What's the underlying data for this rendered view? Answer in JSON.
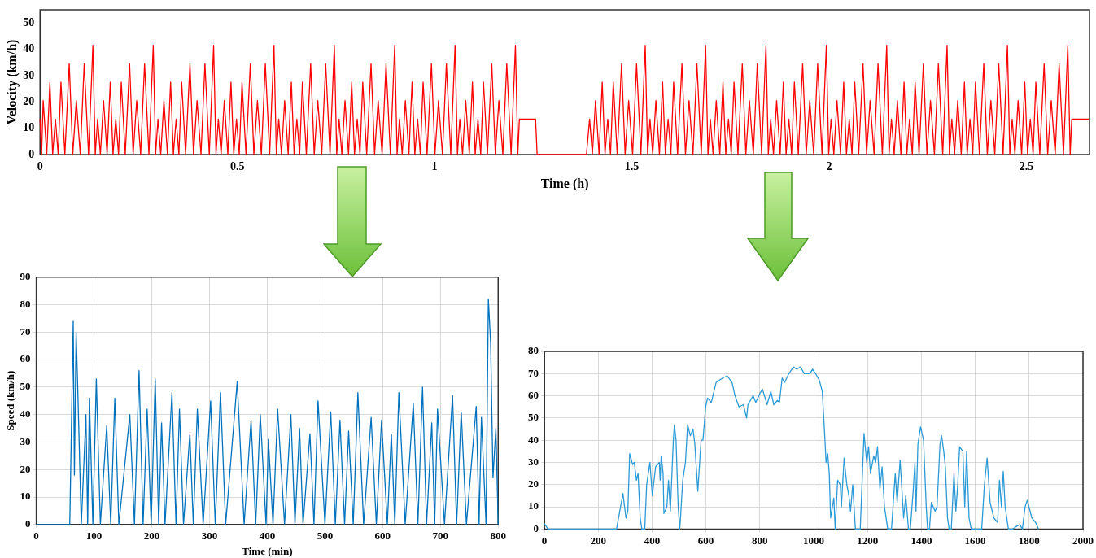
{
  "chart_data": [
    {
      "type": "line",
      "xlabel": "Time (h)",
      "ylabel": "Velocity (km/h)",
      "color": "#ff0000",
      "xlim": [
        0,
        2.66
      ],
      "ylim": [
        0,
        55
      ],
      "xticks": [
        0,
        0.5,
        1,
        1.5,
        2,
        2.5
      ],
      "yticks": [
        0,
        10,
        20,
        30,
        40,
        50
      ],
      "x": [
        0,
        0.004,
        0.008,
        0.017,
        0.025,
        0.032,
        0.039,
        0.046,
        0.053,
        0.063,
        0.074,
        0.083,
        0.092,
        0.102,
        0.112,
        0.123,
        0.134,
        0.14,
        0.146,
        0.153,
        0.161,
        0.17,
        0.178,
        0.185,
        0.192,
        0.199,
        0.206,
        0.216,
        0.227,
        0.236,
        0.245,
        0.255,
        0.265,
        0.276,
        0.287,
        0.293,
        0.299,
        0.306,
        0.314,
        0.323,
        0.331,
        0.338,
        0.345,
        0.352,
        0.359,
        0.369,
        0.38,
        0.389,
        0.398,
        0.408,
        0.418,
        0.429,
        0.44,
        0.446,
        0.452,
        0.459,
        0.467,
        0.476,
        0.484,
        0.491,
        0.498,
        0.505,
        0.512,
        0.522,
        0.533,
        0.542,
        0.551,
        0.561,
        0.571,
        0.582,
        0.593,
        0.599,
        0.605,
        0.612,
        0.62,
        0.629,
        0.637,
        0.644,
        0.651,
        0.658,
        0.665,
        0.675,
        0.686,
        0.695,
        0.704,
        0.714,
        0.724,
        0.735,
        0.746,
        0.752,
        0.758,
        0.765,
        0.773,
        0.782,
        0.79,
        0.797,
        0.804,
        0.811,
        0.818,
        0.828,
        0.839,
        0.848,
        0.857,
        0.867,
        0.877,
        0.888,
        0.899,
        0.905,
        0.911,
        0.918,
        0.926,
        0.935,
        0.943,
        0.95,
        0.957,
        0.964,
        0.971,
        0.981,
        0.992,
        1.001,
        1.01,
        1.02,
        1.03,
        1.041,
        1.052,
        1.058,
        1.064,
        1.071,
        1.079,
        1.088,
        1.096,
        1.103,
        1.11,
        1.117,
        1.124,
        1.134,
        1.145,
        1.154,
        1.163,
        1.173,
        1.183,
        1.194,
        1.205,
        1.211,
        1.215,
        1.256,
        1.26,
        1.385,
        1.393,
        1.4,
        1.408,
        1.417,
        1.425,
        1.432,
        1.439,
        1.446,
        1.453,
        1.463,
        1.474,
        1.483,
        1.492,
        1.502,
        1.512,
        1.523,
        1.534,
        1.54,
        1.546,
        1.553,
        1.561,
        1.57,
        1.578,
        1.585,
        1.592,
        1.599,
        1.606,
        1.616,
        1.627,
        1.636,
        1.645,
        1.655,
        1.665,
        1.676,
        1.687,
        1.693,
        1.699,
        1.706,
        1.714,
        1.723,
        1.731,
        1.738,
        1.745,
        1.752,
        1.759,
        1.769,
        1.78,
        1.789,
        1.798,
        1.808,
        1.818,
        1.829,
        1.84,
        1.846,
        1.852,
        1.859,
        1.867,
        1.876,
        1.884,
        1.891,
        1.898,
        1.905,
        1.912,
        1.922,
        1.933,
        1.942,
        1.951,
        1.961,
        1.971,
        1.982,
        1.993,
        1.999,
        2.005,
        2.012,
        2.02,
        2.029,
        2.037,
        2.044,
        2.051,
        2.058,
        2.065,
        2.075,
        2.086,
        2.095,
        2.104,
        2.114,
        2.124,
        2.135,
        2.146,
        2.152,
        2.158,
        2.165,
        2.173,
        2.182,
        2.19,
        2.197,
        2.204,
        2.211,
        2.218,
        2.228,
        2.239,
        2.248,
        2.257,
        2.267,
        2.277,
        2.288,
        2.299,
        2.305,
        2.311,
        2.318,
        2.326,
        2.335,
        2.343,
        2.35,
        2.357,
        2.364,
        2.371,
        2.381,
        2.392,
        2.401,
        2.41,
        2.42,
        2.43,
        2.441,
        2.452,
        2.458,
        2.464,
        2.471,
        2.479,
        2.488,
        2.496,
        2.503,
        2.51,
        2.517,
        2.524,
        2.534,
        2.545,
        2.554,
        2.563,
        2.573,
        2.583,
        2.594,
        2.605,
        2.611,
        2.615,
        2.66
      ],
      "values": [
        13.5,
        0,
        20.5,
        0,
        27.5,
        0,
        13.5,
        0,
        27.5,
        0,
        34.5,
        0,
        20.5,
        0,
        34.5,
        0,
        41.5,
        0,
        13.5,
        0,
        20.5,
        0,
        27.5,
        0,
        13.5,
        0,
        27.5,
        0,
        34.5,
        0,
        20.5,
        0,
        34.5,
        0,
        41.5,
        0,
        13.5,
        0,
        20.5,
        0,
        27.5,
        0,
        13.5,
        0,
        27.5,
        0,
        34.5,
        0,
        20.5,
        0,
        34.5,
        0,
        41.5,
        0,
        13.5,
        0,
        20.5,
        0,
        27.5,
        0,
        13.5,
        0,
        27.5,
        0,
        34.5,
        0,
        20.5,
        0,
        34.5,
        0,
        41.5,
        0,
        13.5,
        0,
        20.5,
        0,
        27.5,
        0,
        13.5,
        0,
        27.5,
        0,
        34.5,
        0,
        20.5,
        0,
        34.5,
        0,
        41.5,
        0,
        13.5,
        0,
        20.5,
        0,
        27.5,
        0,
        13.5,
        0,
        27.5,
        0,
        34.5,
        0,
        20.5,
        0,
        34.5,
        0,
        41.5,
        0,
        13.5,
        0,
        20.5,
        0,
        27.5,
        0,
        13.5,
        0,
        27.5,
        0,
        34.5,
        0,
        20.5,
        0,
        34.5,
        0,
        41.5,
        0,
        13.5,
        0,
        20.5,
        0,
        27.5,
        0,
        13.5,
        0,
        27.5,
        0,
        34.5,
        0,
        20.5,
        0,
        34.5,
        0,
        41.5,
        0,
        13.5,
        13.5,
        0,
        0,
        13.5,
        0,
        20.5,
        0,
        27.5,
        0,
        13.5,
        0,
        27.5,
        0,
        34.5,
        0,
        20.5,
        0,
        34.5,
        0,
        41.5,
        0,
        13.5,
        0,
        20.5,
        0,
        27.5,
        0,
        13.5,
        0,
        27.5,
        0,
        34.5,
        0,
        20.5,
        0,
        34.5,
        0,
        41.5,
        0,
        13.5,
        0,
        20.5,
        0,
        27.5,
        0,
        13.5,
        0,
        27.5,
        0,
        34.5,
        0,
        20.5,
        0,
        34.5,
        0,
        41.5,
        0,
        13.5,
        0,
        20.5,
        0,
        27.5,
        0,
        13.5,
        0,
        27.5,
        0,
        34.5,
        0,
        20.5,
        0,
        34.5,
        0,
        41.5,
        0,
        13.5,
        0,
        20.5,
        0,
        27.5,
        0,
        13.5,
        0,
        27.5,
        0,
        34.5,
        0,
        20.5,
        0,
        34.5,
        0,
        41.5,
        0,
        13.5,
        0,
        20.5,
        0,
        27.5,
        0,
        13.5,
        0,
        27.5,
        0,
        34.5,
        0,
        20.5,
        0,
        34.5,
        0,
        41.5,
        0,
        13.5,
        0,
        20.5,
        0,
        27.5,
        0,
        13.5,
        0,
        27.5,
        0,
        34.5,
        0,
        20.5,
        0,
        34.5,
        0,
        41.5,
        0,
        13.5,
        0,
        20.5,
        0,
        27.5,
        0,
        13.5,
        0,
        27.5,
        0,
        34.5,
        0,
        20.5,
        0,
        34.5,
        0,
        41.5,
        0,
        13.5,
        13.5
      ]
    },
    {
      "type": "line",
      "xlabel": "Time (min)",
      "ylabel": "Speed (km/h)",
      "color": "#0072bd",
      "grid": true,
      "xlim": [
        0,
        800
      ],
      "ylim": [
        0,
        90
      ],
      "xticks": [
        0,
        100,
        200,
        300,
        400,
        500,
        600,
        700,
        800
      ],
      "yticks": [
        0,
        10,
        20,
        30,
        40,
        50,
        60,
        70,
        80,
        90
      ],
      "x": [
        0,
        58,
        64,
        66,
        69,
        72,
        78,
        86,
        89,
        92,
        98,
        104,
        111,
        122,
        129,
        136,
        143,
        162,
        170,
        178,
        185,
        192,
        199,
        206,
        212,
        217,
        223,
        235,
        242,
        248,
        255,
        266,
        272,
        279,
        289,
        302,
        310,
        319,
        328,
        348,
        360,
        372,
        380,
        388,
        398,
        402,
        410,
        418,
        430,
        441,
        448,
        456,
        462,
        474,
        481,
        488,
        500,
        510,
        518,
        526,
        534,
        541,
        549,
        557,
        567,
        580,
        589,
        598,
        608,
        615,
        621,
        628,
        639,
        653,
        661,
        669,
        676,
        685,
        690,
        695,
        707,
        721,
        728,
        736,
        745,
        762,
        767,
        771,
        779,
        783,
        787,
        791,
        796,
        800
      ],
      "values": [
        0,
        0,
        74,
        18,
        70,
        48,
        0,
        40,
        0,
        46,
        0,
        53,
        0,
        36,
        0,
        46,
        0,
        40,
        0,
        56,
        0,
        42,
        0,
        53,
        0,
        37,
        0,
        48,
        0,
        42,
        0,
        33,
        0,
        42,
        0,
        45,
        0,
        48,
        0,
        52,
        0,
        38,
        0,
        40,
        0,
        31,
        0,
        42,
        0,
        40,
        0,
        35,
        0,
        33,
        0,
        45,
        0,
        41,
        0,
        38,
        0,
        34,
        0,
        48,
        0,
        39,
        0,
        38,
        0,
        33,
        0,
        48,
        0,
        44,
        0,
        50,
        0,
        37,
        0,
        42,
        0,
        47,
        0,
        41,
        0,
        43,
        0,
        39,
        0,
        82,
        66,
        17,
        35,
        0
      ]
    },
    {
      "type": "line",
      "color": "#2b9ad6",
      "grid": true,
      "xlim": [
        0,
        2000
      ],
      "ylim": [
        0,
        80
      ],
      "xticks": [
        0,
        200,
        400,
        600,
        800,
        1000,
        1200,
        1400,
        1600,
        1800,
        2000
      ],
      "yticks": [
        0,
        10,
        20,
        30,
        40,
        50,
        60,
        70,
        80
      ],
      "x": [
        0,
        14,
        268,
        292,
        303,
        310,
        317,
        328,
        334,
        342,
        348,
        356,
        362,
        373,
        380,
        392,
        401,
        413,
        427,
        430,
        434,
        441,
        444,
        455,
        461,
        468,
        479,
        483,
        489,
        497,
        503,
        514,
        524,
        532,
        542,
        552,
        559,
        563,
        570,
        582,
        589,
        599,
        606,
        620,
        638,
        662,
        679,
        697,
        708,
        723,
        739,
        751,
        756,
        775,
        785,
        800,
        810,
        827,
        841,
        852,
        866,
        873,
        883,
        892,
        908,
        925,
        937,
        951,
        965,
        986,
        996,
        1007,
        1021,
        1032,
        1042,
        1046,
        1052,
        1058,
        1063,
        1075,
        1080,
        1089,
        1099,
        1103,
        1113,
        1123,
        1131,
        1137,
        1145,
        1155,
        1173,
        1187,
        1197,
        1204,
        1211,
        1223,
        1230,
        1237,
        1246,
        1254,
        1263,
        1275,
        1289,
        1303,
        1310,
        1321,
        1334,
        1342,
        1352,
        1359,
        1370,
        1376,
        1380,
        1387,
        1397,
        1408,
        1418,
        1423,
        1430,
        1437,
        1451,
        1458,
        1469,
        1475,
        1483,
        1489,
        1497,
        1503,
        1511,
        1521,
        1528,
        1535,
        1542,
        1554,
        1561,
        1568,
        1577,
        1585,
        1624,
        1634,
        1644,
        1655,
        1669,
        1683,
        1690,
        1697,
        1704,
        1711,
        1723,
        1739,
        1750,
        1765,
        1775,
        1785,
        1793,
        1810,
        1824,
        1835
      ],
      "values": [
        2.5,
        0,
        0,
        16,
        5,
        8,
        34,
        29,
        30,
        22,
        25,
        5,
        0,
        0,
        20,
        30,
        15,
        28,
        30,
        22,
        33,
        25,
        7,
        10,
        22,
        8,
        40,
        47,
        40,
        10,
        0,
        22,
        30,
        47,
        42,
        45,
        38,
        30,
        17,
        40,
        40,
        55,
        59,
        57,
        66,
        68,
        69,
        66,
        60,
        55,
        56,
        50,
        56,
        60,
        57,
        61,
        63,
        56,
        62,
        56,
        58,
        57,
        68,
        66,
        70,
        73,
        72,
        73,
        70,
        70,
        72,
        70,
        67,
        62,
        40,
        30,
        34,
        25,
        5,
        14,
        0,
        22,
        20,
        10,
        32,
        20,
        15,
        8,
        20,
        0,
        0,
        43,
        30,
        37,
        25,
        33,
        30,
        37,
        18,
        28,
        10,
        0,
        0,
        25,
        12,
        31,
        5,
        15,
        0,
        0,
        18,
        30,
        8,
        38,
        46,
        40,
        10,
        0,
        0,
        12,
        8,
        10,
        38,
        42,
        35,
        28,
        5,
        0,
        0,
        25,
        8,
        20,
        37,
        35,
        10,
        35,
        5,
        0,
        0,
        20,
        32,
        12,
        5,
        3,
        22,
        10,
        26,
        10,
        0,
        0,
        1,
        2,
        0,
        10,
        13,
        5,
        3,
        0
      ]
    }
  ]
}
